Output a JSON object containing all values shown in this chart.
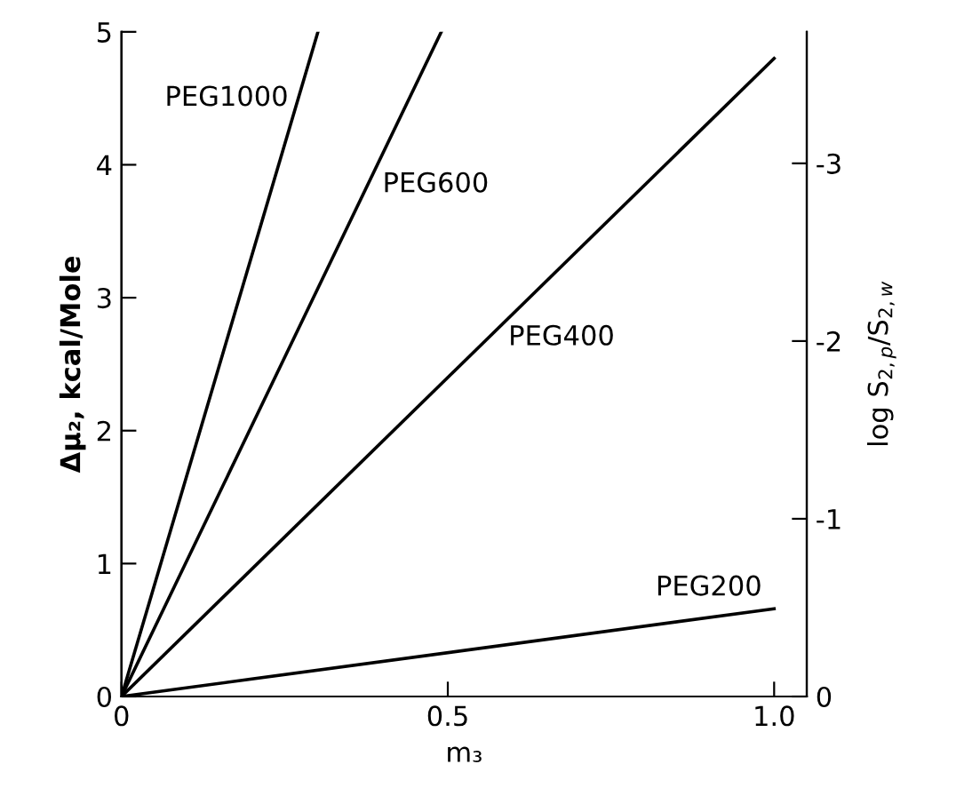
{
  "chart_data": {
    "type": "line",
    "xlabel": "m₃",
    "ylabel": "Δμ₂, kcal/Mole",
    "y2label": "log S$_{2,p}$/S$_{2,w}$",
    "series": [
      {
        "name": "PEG1000",
        "color": "#000000",
        "x": [
          0,
          0.301
        ],
        "values": [
          0,
          5
        ]
      },
      {
        "name": "PEG600",
        "color": "#000000",
        "x": [
          0,
          0.49
        ],
        "values": [
          0,
          5
        ]
      },
      {
        "name": "PEG400",
        "color": "#000000",
        "x": [
          0,
          1.0
        ],
        "values": [
          0,
          4.8
        ]
      },
      {
        "name": "PEG200",
        "color": "#000000",
        "x": [
          0,
          1.0
        ],
        "values": [
          0,
          0.66
        ]
      }
    ],
    "xlim": [
      0,
      1.05
    ],
    "xticks": [
      0,
      0.5,
      {
        "value": 1.0,
        "label": "1.0"
      }
    ],
    "ylim": [
      0,
      5
    ],
    "yticks": [
      0,
      1,
      2,
      3,
      4,
      5
    ],
    "y2lim": [
      0,
      -3.74
    ],
    "y2ticks": [
      0,
      -1,
      -2,
      -3
    ],
    "marker": "none",
    "line_style": "solid"
  }
}
